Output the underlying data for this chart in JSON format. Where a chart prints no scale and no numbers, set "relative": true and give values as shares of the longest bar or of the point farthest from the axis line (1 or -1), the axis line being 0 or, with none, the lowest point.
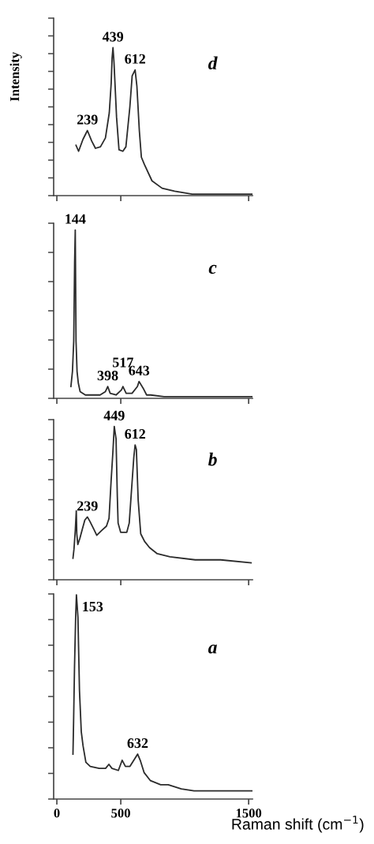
{
  "chart_data": [
    {
      "type": "line",
      "title": "d",
      "ylabel": "Intensity",
      "relative": true,
      "xlim": [
        -25,
        1530
      ],
      "tick_labels": false,
      "color": "#2b2b2b",
      "x": [
        150,
        170,
        204,
        239,
        272,
        302,
        341,
        380,
        410,
        425,
        432,
        439,
        447,
        467,
        486,
        516,
        540,
        571,
        589,
        612,
        626,
        645,
        661,
        685,
        744,
        823,
        921,
        1058,
        1215,
        1525
      ],
      "values": [
        0.34,
        0.3,
        0.38,
        0.44,
        0.37,
        0.32,
        0.33,
        0.39,
        0.56,
        0.76,
        0.93,
        1,
        0.9,
        0.53,
        0.31,
        0.3,
        0.33,
        0.6,
        0.81,
        0.85,
        0.74,
        0.44,
        0.26,
        0.21,
        0.1,
        0.05,
        0.03,
        0.01,
        0.01,
        0.01
      ],
      "annotations": [
        {
          "text": "239",
          "x": 239,
          "y": 0.44
        },
        {
          "text": "439",
          "x": 439,
          "y": 1
        },
        {
          "text": "612",
          "x": 612,
          "y": 0.85
        }
      ]
    },
    {
      "type": "line",
      "title": "c",
      "relative": true,
      "xlim": [
        -25,
        1530
      ],
      "tick_labels": false,
      "color": "#2b2b2b",
      "x": [
        110,
        122,
        132,
        139,
        144,
        150,
        158,
        168,
        182,
        223,
        338,
        380,
        398,
        417,
        463,
        505,
        517,
        542,
        588,
        630,
        643,
        675,
        702,
        734,
        838,
        1109,
        1525
      ],
      "values": [
        0.07,
        0.16,
        0.34,
        0.81,
        1,
        0.34,
        0.16,
        0.09,
        0.04,
        0.02,
        0.02,
        0.04,
        0.07,
        0.03,
        0.02,
        0.05,
        0.07,
        0.03,
        0.03,
        0.07,
        0.1,
        0.06,
        0.02,
        0.02,
        0.01,
        0.01,
        0.01
      ],
      "annotations": [
        {
          "text": "144",
          "x": 144,
          "y": 1
        },
        {
          "text": "398",
          "x": 398,
          "y": 0.07
        },
        {
          "text": "517",
          "x": 517,
          "y": 0.07
        },
        {
          "text": "643",
          "x": 643,
          "y": 0.1
        }
      ]
    },
    {
      "type": "line",
      "title": "b",
      "relative": true,
      "xlim": [
        -25,
        1530
      ],
      "tick_labels": false,
      "color": "#2b2b2b",
      "x": [
        126,
        134,
        144,
        152,
        156,
        164,
        180,
        199,
        219,
        239,
        259,
        289,
        312,
        348,
        388,
        408,
        424,
        438,
        449,
        463,
        473,
        479,
        499,
        547,
        566,
        586,
        602,
        612,
        622,
        636,
        656,
        686,
        725,
        785,
        884,
        1082,
        1281,
        1519
      ],
      "values": [
        0.14,
        0.2,
        0.32,
        0.45,
        0.3,
        0.23,
        0.27,
        0.33,
        0.39,
        0.41,
        0.38,
        0.33,
        0.29,
        0.32,
        0.35,
        0.4,
        0.64,
        0.83,
        1,
        0.92,
        0.54,
        0.37,
        0.31,
        0.31,
        0.37,
        0.61,
        0.8,
        0.88,
        0.85,
        0.52,
        0.3,
        0.25,
        0.21,
        0.17,
        0.15,
        0.13,
        0.13,
        0.11
      ],
      "annotations": [
        {
          "text": "239",
          "x": 239,
          "y": 0.41
        },
        {
          "text": "449",
          "x": 449,
          "y": 1
        },
        {
          "text": "612",
          "x": 612,
          "y": 0.88
        }
      ]
    },
    {
      "type": "line",
      "title": "a",
      "xlabel": "Raman shift (cm$^{−1}$)",
      "relative": true,
      "xlim": [
        -25,
        1530
      ],
      "xticks": [
        0,
        500,
        1500
      ],
      "tick_labels": "x",
      "color": "#2b2b2b",
      "x": [
        126,
        131,
        138,
        147,
        153,
        165,
        177,
        191,
        205,
        227,
        261,
        331,
        381,
        407,
        431,
        481,
        511,
        536,
        572,
        602,
        632,
        652,
        682,
        732,
        812,
        871,
        973,
        1073,
        1472,
        1525
      ],
      "values": [
        0.22,
        0.38,
        0.64,
        0.89,
        1,
        0.89,
        0.53,
        0.33,
        0.26,
        0.18,
        0.16,
        0.15,
        0.15,
        0.17,
        0.15,
        0.14,
        0.19,
        0.16,
        0.16,
        0.19,
        0.22,
        0.19,
        0.13,
        0.09,
        0.07,
        0.07,
        0.05,
        0.04,
        0.04,
        0.04
      ],
      "annotations": [
        {
          "text": "153",
          "x": 153,
          "y": 1
        },
        {
          "text": "632",
          "x": 632,
          "y": 0.22
        }
      ]
    }
  ]
}
